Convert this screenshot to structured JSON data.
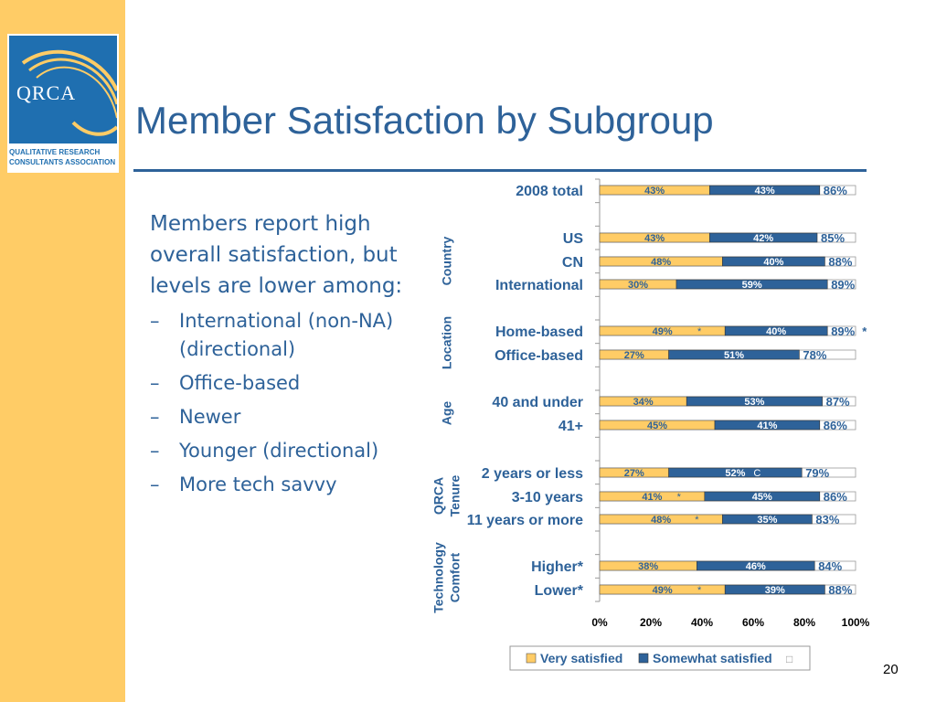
{
  "slide": {
    "title": "Member Satisfaction by Subgroup",
    "page_number": "20"
  },
  "logo": {
    "text": "QRCA",
    "caption_line1": "QUALITATIVE RESEARCH",
    "caption_line2": "CONSULTANTS ASSOCIATION"
  },
  "body": {
    "lead": "Members report high overall satisfaction, but levels are lower among:",
    "bullets": [
      "International (non-NA) (directional)",
      "Office-based",
      "Newer",
      "Younger (directional)",
      "More tech savvy"
    ]
  },
  "chart_data": {
    "type": "bar",
    "stacked": true,
    "orientation": "horizontal",
    "xlim": [
      0,
      100
    ],
    "xticks": [
      "0%",
      "20%",
      "40%",
      "60%",
      "80%",
      "100%"
    ],
    "categories": [
      "2008 total",
      "US",
      "CN",
      "International",
      "Home-based",
      "Office-based",
      "40 and under",
      "41+",
      "2 years or less",
      "3-10 years",
      "11 years or more",
      "Higher",
      "Lower"
    ],
    "category_flags": [
      "",
      "",
      "",
      "",
      "",
      "",
      "",
      "",
      "",
      "",
      "",
      "*",
      "*"
    ],
    "groups": [
      {
        "label": "Country",
        "rows": [
          1,
          2,
          3
        ]
      },
      {
        "label": "Location",
        "rows": [
          4,
          5
        ]
      },
      {
        "label": "Age",
        "rows": [
          6,
          7
        ]
      },
      {
        "label": "QRCA Tenure",
        "rows": [
          8,
          9,
          10
        ]
      },
      {
        "label": "Technology Comfort",
        "rows": [
          11,
          12
        ]
      }
    ],
    "series": [
      {
        "name": "Very satisfied",
        "color": "#FFCC66",
        "values": [
          43,
          43,
          48,
          30,
          49,
          27,
          34,
          45,
          27,
          41,
          48,
          38,
          49
        ],
        "labels": [
          "43%",
          "43%",
          "48%",
          "30%",
          "49%",
          "27%",
          "34%",
          "45%",
          "27%",
          "41%",
          "48%",
          "38%",
          "49%"
        ],
        "flags": [
          "",
          "",
          "",
          "",
          "*",
          "",
          "",
          "",
          "",
          "*",
          "*",
          "",
          "*"
        ]
      },
      {
        "name": "Somewhat satisfied",
        "color": "#2E6299",
        "values": [
          43,
          42,
          40,
          59,
          40,
          51,
          53,
          41,
          52,
          45,
          35,
          46,
          39
        ],
        "labels": [
          "43%",
          "42%",
          "40%",
          "59%",
          "40%",
          "51%",
          "53%",
          "41%",
          "52%",
          "45%",
          "35%",
          "46%",
          "39%"
        ],
        "flags": [
          "",
          "",
          "",
          "",
          "",
          "",
          "",
          "",
          "C",
          "",
          "",
          "",
          ""
        ]
      }
    ],
    "totals": [
      "86%",
      "85%",
      "88%",
      "89%",
      "89%",
      "78%",
      "87%",
      "86%",
      "79%",
      "86%",
      "83%",
      "84%",
      "88%"
    ],
    "total_flags": [
      "",
      "",
      "",
      "",
      "*",
      "",
      "",
      "",
      "",
      "",
      "",
      "",
      ""
    ],
    "remainder_color": "#ffffff",
    "legend": {
      "position": "bottom",
      "extra_symbol": "□"
    }
  }
}
